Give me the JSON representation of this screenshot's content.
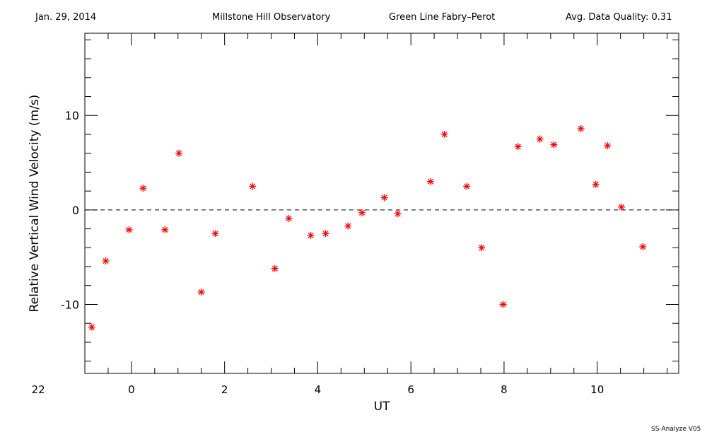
{
  "header": {
    "date": "Jan. 29, 2014",
    "observatory": "Millstone Hill Observatory",
    "instrument": "Green Line Fabry–Perot",
    "data_quality": "Avg. Data Quality: 0.31"
  },
  "footer": "SS-Analyze V05",
  "chart_data": {
    "type": "scatter",
    "title": "",
    "xlabel": "UT",
    "ylabel": "Relative Vertical Wind Velocity (m/s)",
    "xlim": [
      -1,
      11.75
    ],
    "ylim": [
      -17.3,
      18.7
    ],
    "x_ticks": [
      22,
      0,
      2,
      4,
      6,
      8,
      10
    ],
    "x_tick_positions": [
      -2,
      0,
      2,
      4,
      6,
      8,
      10
    ],
    "y_ticks": [
      10,
      0,
      -10
    ],
    "reference_line": 0,
    "marker": "asterisk",
    "marker_color": "#ff0000",
    "x": [
      -0.85,
      -0.55,
      -0.05,
      0.25,
      0.72,
      1.02,
      1.5,
      1.8,
      2.6,
      3.08,
      3.38,
      3.85,
      4.17,
      4.65,
      4.95,
      5.43,
      5.72,
      6.42,
      6.72,
      7.2,
      7.52,
      7.98,
      8.3,
      8.77,
      9.07,
      9.65,
      9.97,
      10.22,
      10.52,
      10.98
    ],
    "y": [
      -12.4,
      -5.4,
      -2.1,
      2.3,
      -2.1,
      6.0,
      -8.7,
      -2.5,
      2.5,
      -6.2,
      -0.9,
      -2.7,
      -2.5,
      -1.7,
      -0.3,
      1.3,
      -0.4,
      3.0,
      8.0,
      2.5,
      -4.0,
      -10.0,
      6.7,
      7.5,
      6.9,
      8.6,
      2.7,
      6.8,
      0.3,
      -3.9
    ]
  }
}
